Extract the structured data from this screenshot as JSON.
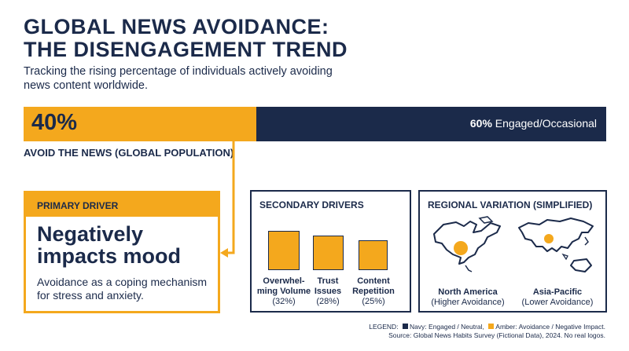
{
  "title_line1": "GLOBAL NEWS AVOIDANCE:",
  "title_line2": "THE DISENGAGEMENT TREND",
  "subtitle": "Tracking the rising percentage of individuals actively avoiding news content worldwide.",
  "colors": {
    "navy": "#1b2a4a",
    "amber": "#f4a81d"
  },
  "chart_data": {
    "type": "bar",
    "orientation": "horizontal-stacked",
    "series": [
      {
        "name": "AVOID THE NEWS (GLOBAL POPULATION)",
        "value": 40,
        "label": "40%",
        "color": "#f4a81d"
      },
      {
        "name": "Engaged/Occasional",
        "value": 60,
        "label": "60%",
        "color": "#1b2a4a"
      }
    ]
  },
  "bar": {
    "left_pct": "40%",
    "right_pct": "60%",
    "right_text": "Engaged/Occasional",
    "label": "AVOID THE NEWS (GLOBAL POPULATION)"
  },
  "primary": {
    "header": "PRIMARY DRIVER",
    "title": "Negatively impacts mood",
    "desc": "Avoidance as a coping mechanism for stress and anxiety."
  },
  "secondary": {
    "title": "SECONDARY DRIVERS",
    "items": [
      {
        "name_line1": "Overwhel-",
        "name_line2": "ming Volume",
        "pct": "(32%)"
      },
      {
        "name_line1": "Trust",
        "name_line2": "Issues",
        "pct": "(28%)"
      },
      {
        "name_line1": "Content",
        "name_line2": "Repetition",
        "pct": "(25%)"
      }
    ]
  },
  "regional": {
    "title": "REGIONAL VARIATION (SIMPLIFIED)",
    "regions": [
      {
        "name": "North America",
        "note": "(Higher Avoidance)",
        "icon": "north-america-map-icon"
      },
      {
        "name": "Asia-Pacific",
        "note": "(Lower Avoidance)",
        "icon": "asia-pacific-map-icon"
      }
    ]
  },
  "legend": {
    "prefix": "LEGEND:",
    "navy": "Navy: Engaged / Neutral,",
    "amber": "Amber: Avoidance / Negative Impact.",
    "source": "Source: Global News Habits Survey (Fictional Data), 2024. No real logos."
  }
}
